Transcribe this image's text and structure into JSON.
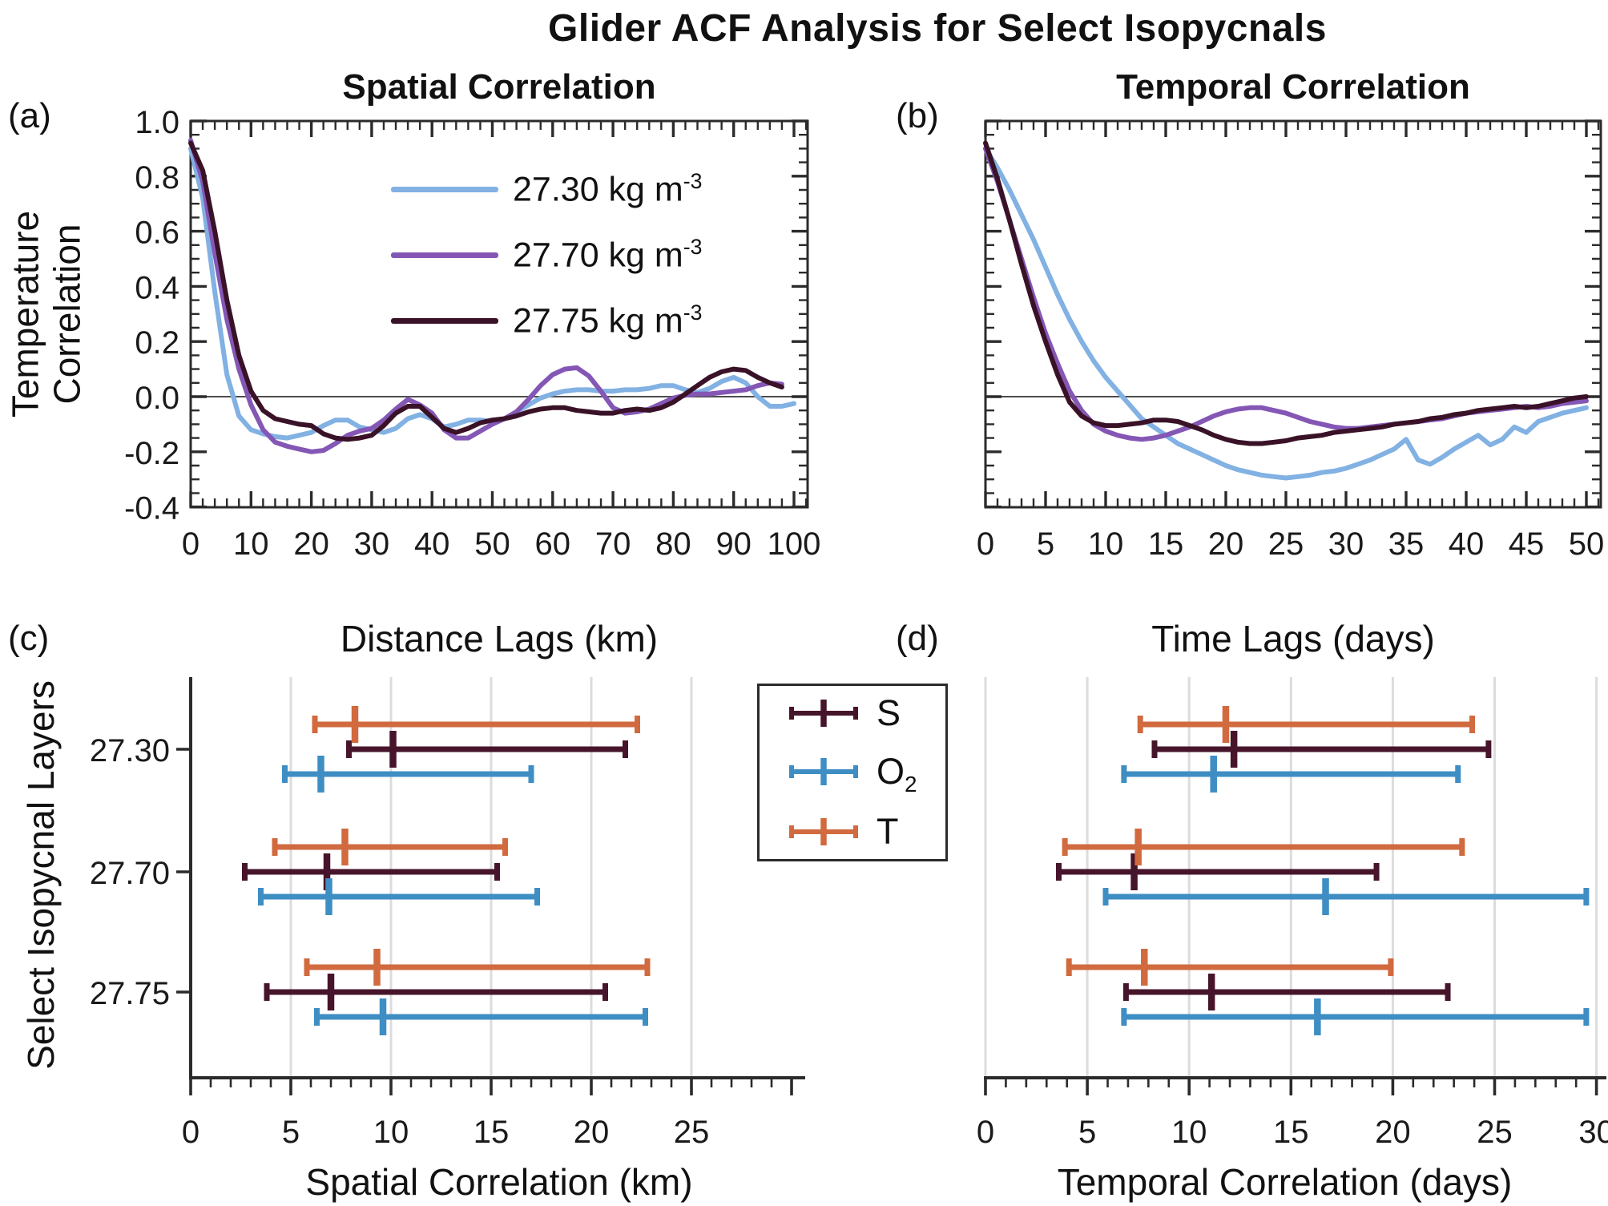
{
  "title": "Glider ACF Analysis for Select Isopycnals",
  "panel_letters": [
    "(a)",
    "(b)",
    "(c)",
    "(d)"
  ],
  "labels": {
    "ylab_ab_line1": "Temperature",
    "ylab_ab_line2": "Correlation"
  },
  "colors": {
    "axis": "#2b2b2b",
    "grid": "#dcdcdc",
    "zero_line": "#4d4d4d",
    "text": "#1a1a1a",
    "line_blue": "#82B1E3",
    "line_purple": "#8457B5",
    "line_darkmaroon": "#3A1228",
    "bar_S": "#47152B",
    "bar_O2": "#3E8EC4",
    "bar_T": "#D16A3F"
  },
  "legend_a": {
    "items": [
      {
        "text": "27.30 kg m",
        "exp": "-3",
        "color": "#82B1E3"
      },
      {
        "text": "27.70 kg m",
        "exp": "-3",
        "color": "#8457B5"
      },
      {
        "text": "27.75 kg m",
        "exp": "-3",
        "color": "#3A1228"
      }
    ]
  },
  "legend_c": {
    "items": [
      {
        "label": "S",
        "sub": "",
        "color": "#47152B"
      },
      {
        "label": "O",
        "sub": "2",
        "color": "#3E8EC4"
      },
      {
        "label": "T",
        "sub": "",
        "color": "#D16A3F"
      }
    ]
  },
  "chart_data": [
    {
      "id": "spatial_acf",
      "type": "line",
      "title": "Spatial Correlation",
      "xlabel": "Distance Lags (km)",
      "ylabel": "Temperature Correlation",
      "xlim": [
        0,
        102
      ],
      "ylim": [
        -0.4,
        1.0
      ],
      "xticks": [
        0,
        10,
        20,
        30,
        40,
        50,
        60,
        70,
        80,
        90,
        100
      ],
      "xminor_step": 2,
      "yticks": [
        1.0,
        0.8,
        0.6,
        0.4,
        0.2,
        0.0,
        -0.2,
        -0.4
      ],
      "ytick_labels": [
        "1.0",
        "0.8",
        "0.6",
        "0.4",
        "0.2",
        "0.0",
        "-0.2",
        "-0.4"
      ],
      "zero_line": true,
      "grid": false,
      "legend_position": "upper right inside, no box",
      "series": [
        {
          "name": "27.30 kg m^-3",
          "color": "#82B1E3",
          "x_start": 0,
          "x_step": 2,
          "y": [
            0.9,
            0.72,
            0.38,
            0.08,
            -0.07,
            -0.12,
            -0.135,
            -0.145,
            -0.15,
            -0.14,
            -0.13,
            -0.105,
            -0.085,
            -0.085,
            -0.11,
            -0.12,
            -0.13,
            -0.115,
            -0.08,
            -0.065,
            -0.08,
            -0.11,
            -0.1,
            -0.085,
            -0.085,
            -0.09,
            -0.08,
            -0.055,
            -0.03,
            -0.005,
            0.01,
            0.02,
            0.025,
            0.025,
            0.02,
            0.02,
            0.025,
            0.025,
            0.03,
            0.04,
            0.04,
            0.025,
            0.015,
            0.03,
            0.055,
            0.07,
            0.05,
            0.0,
            -0.035,
            -0.035,
            -0.025
          ]
        },
        {
          "name": "27.70 kg m^-3",
          "color": "#8457B5",
          "x_start": 0,
          "x_step": 2,
          "y": [
            0.93,
            0.78,
            0.52,
            0.28,
            0.1,
            -0.03,
            -0.12,
            -0.165,
            -0.18,
            -0.19,
            -0.2,
            -0.195,
            -0.17,
            -0.14,
            -0.125,
            -0.115,
            -0.085,
            -0.045,
            -0.01,
            -0.03,
            -0.06,
            -0.12,
            -0.15,
            -0.15,
            -0.125,
            -0.1,
            -0.08,
            -0.055,
            -0.01,
            0.04,
            0.08,
            0.1,
            0.105,
            0.075,
            0.02,
            -0.04,
            -0.06,
            -0.055,
            -0.045,
            -0.025,
            -0.005,
            0.005,
            0.01,
            0.01,
            0.015,
            0.02,
            0.025,
            0.04,
            0.05,
            0.045
          ]
        },
        {
          "name": "27.75 kg m^-3",
          "color": "#3A1228",
          "x_start": 0,
          "x_step": 2,
          "y": [
            0.92,
            0.82,
            0.6,
            0.35,
            0.15,
            0.02,
            -0.05,
            -0.08,
            -0.09,
            -0.1,
            -0.105,
            -0.135,
            -0.15,
            -0.155,
            -0.15,
            -0.14,
            -0.105,
            -0.06,
            -0.035,
            -0.035,
            -0.075,
            -0.115,
            -0.13,
            -0.115,
            -0.095,
            -0.085,
            -0.08,
            -0.07,
            -0.055,
            -0.045,
            -0.04,
            -0.04,
            -0.05,
            -0.055,
            -0.06,
            -0.06,
            -0.05,
            -0.045,
            -0.05,
            -0.04,
            -0.02,
            0.01,
            0.04,
            0.07,
            0.09,
            0.1,
            0.095,
            0.07,
            0.05,
            0.035
          ]
        }
      ]
    },
    {
      "id": "temporal_acf",
      "type": "line",
      "title": "Temporal Correlation",
      "xlabel": "Time Lags (days)",
      "ylabel": "Temperature Correlation",
      "xlim": [
        0,
        51.2
      ],
      "ylim": [
        -0.4,
        1.0
      ],
      "xticks": [
        0,
        5,
        10,
        15,
        20,
        25,
        30,
        35,
        40,
        45,
        50
      ],
      "xminor_step": 1,
      "yticks": [
        1.0,
        0.8,
        0.6,
        0.4,
        0.2,
        0.0,
        -0.2,
        -0.4
      ],
      "ytick_labels": [],
      "zero_line": true,
      "grid": false,
      "series": [
        {
          "name": "27.30 kg m^-3",
          "color": "#82B1E3",
          "x_start": 0,
          "x_step": 1,
          "y": [
            0.9,
            0.83,
            0.75,
            0.66,
            0.57,
            0.47,
            0.37,
            0.28,
            0.2,
            0.13,
            0.07,
            0.02,
            -0.03,
            -0.08,
            -0.11,
            -0.14,
            -0.17,
            -0.19,
            -0.21,
            -0.23,
            -0.25,
            -0.265,
            -0.275,
            -0.285,
            -0.29,
            -0.295,
            -0.29,
            -0.285,
            -0.275,
            -0.27,
            -0.26,
            -0.245,
            -0.23,
            -0.21,
            -0.19,
            -0.155,
            -0.23,
            -0.245,
            -0.22,
            -0.19,
            -0.165,
            -0.14,
            -0.175,
            -0.155,
            -0.11,
            -0.13,
            -0.09,
            -0.075,
            -0.06,
            -0.05,
            -0.04
          ]
        },
        {
          "name": "27.70 kg m^-3",
          "color": "#8457B5",
          "x_start": 0,
          "x_step": 1,
          "y": [
            0.9,
            0.78,
            0.64,
            0.5,
            0.36,
            0.23,
            0.12,
            0.02,
            -0.05,
            -0.1,
            -0.125,
            -0.14,
            -0.15,
            -0.155,
            -0.15,
            -0.14,
            -0.125,
            -0.11,
            -0.09,
            -0.07,
            -0.055,
            -0.045,
            -0.04,
            -0.04,
            -0.05,
            -0.06,
            -0.075,
            -0.09,
            -0.1,
            -0.11,
            -0.115,
            -0.115,
            -0.11,
            -0.105,
            -0.1,
            -0.095,
            -0.09,
            -0.085,
            -0.08,
            -0.07,
            -0.06,
            -0.055,
            -0.05,
            -0.045,
            -0.04,
            -0.035,
            -0.04,
            -0.035,
            -0.025,
            -0.02,
            -0.015
          ]
        },
        {
          "name": "27.75 kg m^-3",
          "color": "#3A1228",
          "x_start": 0,
          "x_step": 1,
          "y": [
            0.92,
            0.79,
            0.64,
            0.48,
            0.33,
            0.2,
            0.08,
            -0.02,
            -0.07,
            -0.095,
            -0.105,
            -0.105,
            -0.1,
            -0.095,
            -0.085,
            -0.085,
            -0.09,
            -0.105,
            -0.12,
            -0.14,
            -0.155,
            -0.165,
            -0.17,
            -0.17,
            -0.165,
            -0.16,
            -0.15,
            -0.145,
            -0.14,
            -0.13,
            -0.125,
            -0.12,
            -0.115,
            -0.11,
            -0.1,
            -0.095,
            -0.09,
            -0.08,
            -0.075,
            -0.065,
            -0.06,
            -0.05,
            -0.045,
            -0.04,
            -0.035,
            -0.04,
            -0.035,
            -0.025,
            -0.015,
            -0.005,
            0.0
          ]
        }
      ]
    },
    {
      "id": "spatial_scales",
      "type": "errorbar",
      "xlabel": "Spatial Correlation (km)",
      "ylabel": "Select Isopycnal Layers",
      "categories": [
        "27.30",
        "27.70",
        "27.75"
      ],
      "xlim": [
        0,
        30.8
      ],
      "xticks": [
        0,
        5,
        10,
        15,
        20,
        25
      ],
      "grid": [
        5,
        10,
        15,
        20,
        25
      ],
      "series": [
        {
          "name": "S",
          "color": "#47152B",
          "bars": [
            [
              7.9,
              10.1,
              21.7
            ],
            [
              2.7,
              6.8,
              15.3
            ],
            [
              3.8,
              7.0,
              20.7
            ]
          ]
        },
        {
          "name": "O2",
          "color": "#3E8EC4",
          "bars": [
            [
              4.7,
              6.5,
              17.0
            ],
            [
              3.5,
              6.9,
              17.3
            ],
            [
              6.3,
              9.6,
              22.7
            ]
          ]
        },
        {
          "name": "T",
          "color": "#D16A3F",
          "bars": [
            [
              6.2,
              8.2,
              22.3
            ],
            [
              4.2,
              7.7,
              15.7
            ],
            [
              5.8,
              9.3,
              22.8
            ]
          ]
        }
      ]
    },
    {
      "id": "temporal_scales",
      "type": "errorbar",
      "xlabel": "Temporal Correlation (days)",
      "ylabel": "Select Isopycnal Layers",
      "categories": [
        "27.30",
        "27.70",
        "27.75"
      ],
      "xlim": [
        0,
        30.5
      ],
      "xticks": [
        0,
        5,
        10,
        15,
        20,
        25,
        30
      ],
      "grid": [
        0,
        5,
        10,
        15,
        20,
        25,
        30
      ],
      "series": [
        {
          "name": "S",
          "color": "#47152B",
          "bars": [
            [
              8.3,
              12.2,
              24.7
            ],
            [
              3.6,
              7.3,
              19.2
            ],
            [
              6.9,
              11.1,
              22.7
            ]
          ]
        },
        {
          "name": "O2",
          "color": "#3E8EC4",
          "bars": [
            [
              6.8,
              11.2,
              23.2
            ],
            [
              5.9,
              16.7,
              29.5
            ],
            [
              6.8,
              16.3,
              29.5
            ]
          ]
        },
        {
          "name": "T",
          "color": "#D16A3F",
          "bars": [
            [
              7.6,
              11.8,
              23.9
            ],
            [
              3.9,
              7.5,
              23.4
            ],
            [
              4.1,
              7.8,
              19.9
            ]
          ]
        }
      ]
    }
  ]
}
